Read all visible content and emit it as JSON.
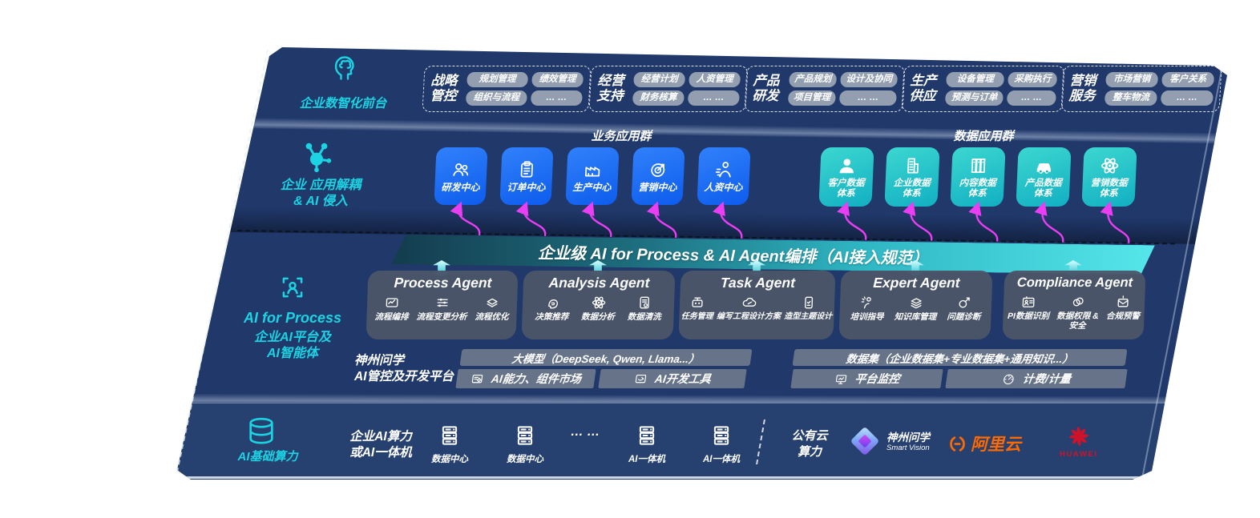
{
  "colors": {
    "board_navy": "#20386a",
    "infra_navy": "#26406f",
    "teal_accent": "#1bd3e2",
    "blue_box": "#1766ef",
    "teal_box": "#21c3c6",
    "band_teal": "#43dfe3",
    "magenta": "#ea3ef2",
    "chip_gray": "#939fb0",
    "agent_gray": "#4c5569",
    "ali_orange": "#ff6a00",
    "huawei_red": "#d0122b"
  },
  "front_layer": {
    "icon": "brain-head-icon",
    "label": "企业数智化前台",
    "groups": [
      {
        "title": "战略管控",
        "chips": [
          "规划管理",
          "绩效管理",
          "组织与流程",
          "… …"
        ]
      },
      {
        "title": "经营支持",
        "chips": [
          "经营计划",
          "人资管理",
          "财务核算",
          "… …"
        ]
      },
      {
        "title": "产品研发",
        "chips": [
          "产品规划",
          "设计及协同",
          "项目管理",
          "… …"
        ]
      },
      {
        "title": "生产供应",
        "chips": [
          "设备管理",
          "采购执行",
          "预测与订单",
          "… …"
        ]
      },
      {
        "title": "营销服务",
        "chips": [
          "市场营销",
          "客户关系",
          "整车物流",
          "… …"
        ]
      }
    ]
  },
  "app_layer": {
    "icon": "molecule-icon",
    "label_line1": "企业 应用解耦",
    "label_line2": "& AI 侵入",
    "business_group": {
      "title": "业务应用群",
      "items": [
        {
          "label": "研发中心",
          "icon": "team-icon"
        },
        {
          "label": "订单中心",
          "icon": "clipboard-icon"
        },
        {
          "label": "生产中心",
          "icon": "factory-icon"
        },
        {
          "label": "营销中心",
          "icon": "target-icon"
        },
        {
          "label": "人资中心",
          "icon": "people-motion-icon"
        }
      ]
    },
    "data_group": {
      "title": "数据应用群",
      "items": [
        {
          "label": "客户数据体系",
          "icon": "user-icon"
        },
        {
          "label": "企业数据体系",
          "icon": "building-icon"
        },
        {
          "label": "内容数据体系",
          "icon": "books-icon"
        },
        {
          "label": "产品数据体系",
          "icon": "car-icon"
        },
        {
          "label": "营销数据体系",
          "icon": "atom-icon"
        }
      ]
    }
  },
  "band": {
    "text": "企业级 AI for Process & AI Agent编排（AI接入规范）"
  },
  "agent_layer": {
    "icon": "scan-person-icon",
    "label_line1": "AI for Process",
    "label_line2": "企业AI平台及",
    "label_line3": "AI智能体",
    "agents": [
      {
        "title": "Process Agent",
        "items": [
          {
            "label": "流程编排",
            "icon": "flow-panel-icon"
          },
          {
            "label": "流程变更分析",
            "icon": "sliders-icon"
          },
          {
            "label": "流程优化",
            "icon": "flow-stack-icon"
          }
        ]
      },
      {
        "title": "Analysis Agent",
        "items": [
          {
            "label": "决策推荐",
            "icon": "head-chat-icon"
          },
          {
            "label": "数据分析",
            "icon": "atom-icon"
          },
          {
            "label": "数据清洗",
            "icon": "doc-gear-icon"
          }
        ]
      },
      {
        "title": "Task Agent",
        "items": [
          {
            "label": "任务管理",
            "icon": "robot-icon"
          },
          {
            "label": "编写工程设计方案",
            "icon": "cloud-edit-icon"
          },
          {
            "label": "造型主题设计",
            "icon": "phone-checklist-icon"
          }
        ]
      },
      {
        "title": "Expert Agent",
        "items": [
          {
            "label": "培训指导",
            "icon": "training-icon"
          },
          {
            "label": "知识库管理",
            "icon": "layers-icon"
          },
          {
            "label": "问题诊断",
            "icon": "wrench-icon"
          }
        ]
      },
      {
        "title": "Compliance Agent",
        "items": [
          {
            "label": "PI数据识别",
            "icon": "id-card-icon"
          },
          {
            "label": "数据权限 & 安全",
            "icon": "link-rings-icon"
          },
          {
            "label": "合规预警",
            "icon": "mail-alert-icon"
          }
        ]
      }
    ]
  },
  "platform": {
    "label_line1": "神州问学",
    "label_line2": "AI管控及开发平台",
    "model_bar": "大模型（DeepSeek, Qwen, Llama...）",
    "dataset_bar": "数据集（企业数据集+专业数据集+通用知识...）",
    "cells": [
      {
        "label": "AI能力、组件市场",
        "icon": "gear-screen-icon"
      },
      {
        "label": "AI开发工具",
        "icon": "dev-tool-icon"
      },
      {
        "label": "平台监控",
        "icon": "monitor-icon"
      },
      {
        "label": "计费/计量",
        "icon": "gauge-icon"
      }
    ]
  },
  "infra": {
    "icon": "database-icon",
    "label": "AI基础算力",
    "compute_line1": "企业AI算力",
    "compute_line2": "或AI一体机",
    "nodes": [
      {
        "label": "数据中心",
        "icon": "server-icon"
      },
      {
        "label": "数据中心",
        "icon": "server-icon"
      },
      {
        "label": "AI一体机",
        "icon": "server-icon"
      },
      {
        "label": "AI一体机",
        "icon": "server-icon"
      }
    ],
    "dots": "… …",
    "cloud_line1": "公有云",
    "cloud_line2": "算力",
    "vendors": {
      "smartvision": {
        "name": "神州问学",
        "sub": "Smart Vision",
        "icon": "smartvision-diamond-icon"
      },
      "alicloud": {
        "name": "阿里云",
        "icon": "alicloud-bracket-icon"
      },
      "huawei": {
        "name": "HUAWEI",
        "icon": "huawei-flower-icon"
      }
    }
  }
}
